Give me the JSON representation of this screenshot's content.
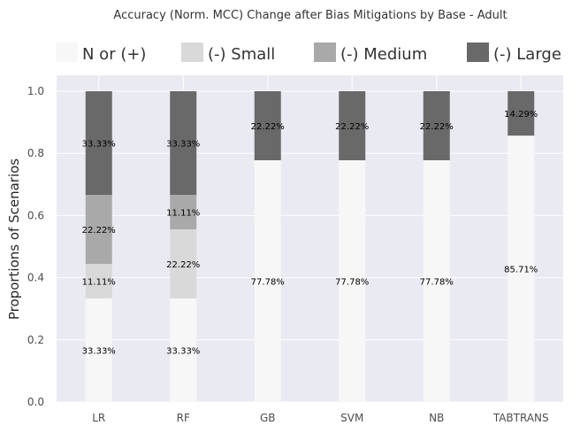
{
  "chart_data": {
    "type": "bar",
    "stacked": true,
    "title": "Accuracy (Norm. MCC) Change after Bias Mitigations by Base - Adult",
    "xlabel": "",
    "ylabel": "Proportions of Scenarios",
    "ylim": [
      0.0,
      1.05
    ],
    "yticks": [
      "0.0",
      "0.2",
      "0.4",
      "0.6",
      "0.8",
      "1.0"
    ],
    "grid": true,
    "legend_position": "top",
    "categories": [
      "LR",
      "RF",
      "GB",
      "SVM",
      "NB",
      "TABTRANS"
    ],
    "series": [
      {
        "name": "N or (+)",
        "color": "#f7f7f7",
        "values": [
          0.3333,
          0.3333,
          0.7778,
          0.7778,
          0.7778,
          0.8571
        ],
        "labels": [
          "33.33%",
          "33.33%",
          "77.78%",
          "77.78%",
          "77.78%",
          "85.71%"
        ]
      },
      {
        "name": "(-) Small",
        "color": "#d9d9d9",
        "values": [
          0.1111,
          0.2222,
          0.0,
          0.0,
          0.0,
          0.0
        ],
        "labels": [
          "11.11%",
          "22.22%",
          "",
          "",
          "",
          ""
        ]
      },
      {
        "name": "(-) Medium",
        "color": "#a9a9a9",
        "values": [
          0.2222,
          0.1111,
          0.0,
          0.0,
          0.0,
          0.0
        ],
        "labels": [
          "22.22%",
          "11.11%",
          "",
          "",
          "",
          ""
        ]
      },
      {
        "name": "(-) Large",
        "color": "#696969",
        "values": [
          0.3333,
          0.3333,
          0.2222,
          0.2222,
          0.2222,
          0.1429
        ],
        "labels": [
          "33.33%",
          "33.33%",
          "22.22%",
          "22.22%",
          "22.22%",
          "14.29%"
        ]
      }
    ],
    "plot_background": "#eaeaf2",
    "grid_color": "#ffffff"
  }
}
